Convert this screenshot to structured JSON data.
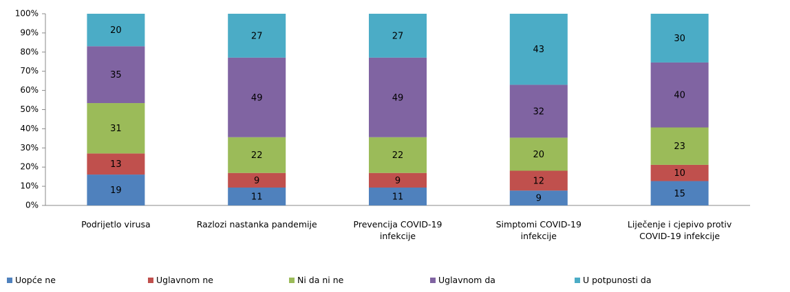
{
  "chart_data": {
    "type": "bar",
    "stacking": "percent",
    "categories": [
      "Podrijetlo virusa",
      "Razlozi nastanka pandemije",
      "Prevencija COVID-19 infekcije",
      "Simptomi COVID-19 infekcije",
      "Liječenje i cjepivo protiv COVID-19 infekcije"
    ],
    "series": [
      {
        "name": "Uopće ne",
        "color": "#4f81bd",
        "values": [
          19,
          11,
          11,
          9,
          15
        ]
      },
      {
        "name": "Uglavnom ne",
        "color": "#c0504d",
        "values": [
          13,
          9,
          9,
          12,
          10
        ]
      },
      {
        "name": "Ni da ni ne",
        "color": "#9bbb59",
        "values": [
          31,
          22,
          22,
          20,
          23
        ]
      },
      {
        "name": "Uglavnom da",
        "color": "#8064a2",
        "values": [
          35,
          49,
          49,
          32,
          40
        ]
      },
      {
        "name": "U potpunosti da",
        "color": "#4bacc6",
        "values": [
          20,
          27,
          27,
          43,
          30
        ]
      }
    ],
    "ylim": [
      0,
      100
    ],
    "yticks": [
      {
        "value": 0,
        "label": "0%"
      },
      {
        "value": 10,
        "label": "10%"
      },
      {
        "value": 20,
        "label": "20%"
      },
      {
        "value": 30,
        "label": "30%"
      },
      {
        "value": 40,
        "label": "40%"
      },
      {
        "value": 50,
        "label": "50%"
      },
      {
        "value": 60,
        "label": "60%"
      },
      {
        "value": 70,
        "label": "70%"
      },
      {
        "value": 80,
        "label": "80%"
      },
      {
        "value": 90,
        "label": "90%"
      },
      {
        "value": 100,
        "label": "100%"
      }
    ],
    "grid": false,
    "legend": "bottom"
  }
}
